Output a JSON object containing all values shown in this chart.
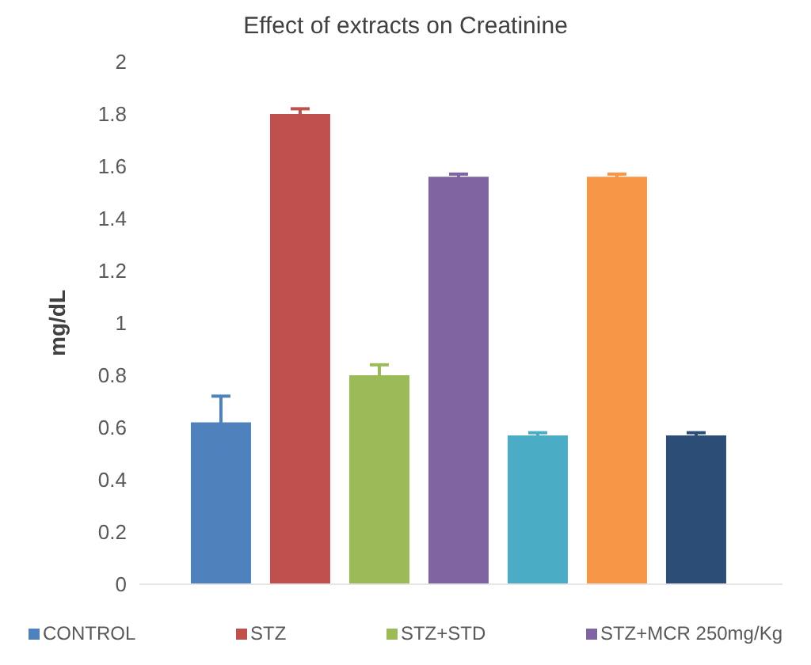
{
  "chart_data": {
    "type": "bar",
    "title": "Effect of extracts on Creatinine",
    "ylabel": "mg/dL",
    "categories": [
      null
    ],
    "series": [
      {
        "name": "CONTROL",
        "color": "#4f81bd",
        "values": [
          0.62
        ],
        "errors": [
          0.1
        ]
      },
      {
        "name": "STZ",
        "color": "#c0504d",
        "values": [
          1.8
        ],
        "errors": [
          0.02
        ]
      },
      {
        "name": "STZ+STD",
        "color": "#9bbb59",
        "values": [
          0.8
        ],
        "errors": [
          0.04
        ]
      },
      {
        "name": "STZ+MCR 250mg/Kg",
        "color": "#8064a2",
        "values": [
          1.56
        ],
        "errors": [
          0.01
        ]
      },
      {
        "color": "#4bacc6",
        "values": [
          0.57
        ],
        "errors": [
          0.01
        ]
      },
      {
        "color": "#f79646",
        "values": [
          1.56
        ],
        "errors": [
          0.01
        ]
      },
      {
        "color": "#2c4d75",
        "values": [
          0.57
        ],
        "errors": [
          0.01
        ]
      }
    ],
    "ylim": [
      0,
      2
    ],
    "yticks": [
      0,
      0.2,
      0.4,
      0.6,
      0.8,
      1,
      1.2,
      1.4,
      1.6,
      1.8,
      2
    ],
    "grid": false,
    "legend": "bottom"
  }
}
